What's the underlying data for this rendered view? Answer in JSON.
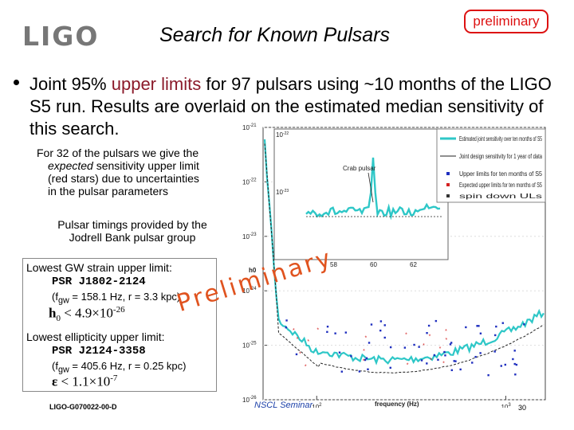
{
  "header": {
    "logo": "LIGO",
    "title": "Search for Known Pulsars",
    "badge": "preliminary"
  },
  "bullet": {
    "pre": "Joint 95% ",
    "highlight": "upper limits",
    "post": " for 97 pulsars using ~10 months of the LIGO S5 run. Results are overlaid on the estimated median sensitivity of this search."
  },
  "notes": {
    "sensitivity_1": "For 32 of the pulsars we give the",
    "sensitivity_2a": "expected",
    "sensitivity_2b": " sensitivity upper limit",
    "sensitivity_3": "(red stars) due to uncertainties",
    "sensitivity_4": "in the pulsar parameters",
    "timings_1": "Pulsar timings provided by the",
    "timings_2": "Jodrell Bank pulsar group"
  },
  "results": {
    "strain_label": "Lowest GW strain upper limit:",
    "strain_pulsar": "PSR J1802-2124",
    "strain_params_pre": "(f",
    "strain_params_sub": "gw",
    "strain_params_post": " = 158.1 Hz, r = 3.3 kpc)",
    "strain_symbol": "h",
    "strain_sub": "0",
    "strain_rel": " < 4.9×10",
    "strain_exp": "-26",
    "ellip_label": "Lowest ellipticity upper limit:",
    "ellip_pulsar": "PSR J2124-3358",
    "ellip_params_pre": "(f",
    "ellip_params_sub": "gw",
    "ellip_params_post": " = 405.6 Hz, r = 0.25 kpc)",
    "ellip_symbol": "ε",
    "ellip_rel": " < 1.1×10",
    "ellip_exp": "-7"
  },
  "watermark": "Preliminary",
  "footer": {
    "doc_id": "LIGO-G070022-00-D",
    "seminar": "NSCL Seminar",
    "page": "30"
  },
  "chart_data": [
    {
      "type": "line",
      "title": "",
      "xlabel": "frequency (Hz)",
      "ylabel": "h0",
      "x_scale": "log",
      "y_scale": "log",
      "ylim_exponents": [
        -26,
        -21
      ],
      "y_tick_labels": [
        "10^-21",
        "10^-22",
        "10^-23",
        "10^-24",
        "10^-25",
        "10^-26"
      ],
      "x_tick_labels": [
        "10^2",
        "10^3"
      ],
      "legend": [
        "Estimated joint sensitivity over ten months of S5",
        "Joint design sensitivity for 1 year of data",
        "Upper limits for ten months of S5",
        "Expected upper limits for ten months of S5",
        "spin down ULs"
      ],
      "annotations": [
        "Crab pulsar"
      ],
      "inset": {
        "x_tick_labels": [
          "58",
          "60",
          "62"
        ],
        "y_tick_labels": [
          "10^-22",
          "10^-23"
        ]
      },
      "colors": {
        "sensitivity": "#2ec7c7",
        "design": "#222222",
        "upper_limits": "#1f2fbf",
        "expected": "#d42020"
      }
    }
  ]
}
